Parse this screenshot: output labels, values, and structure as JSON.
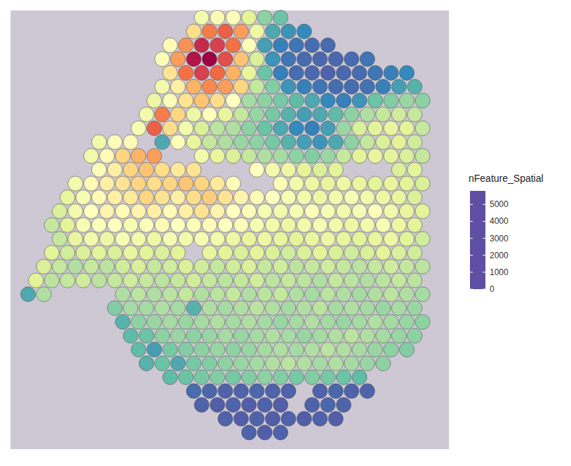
{
  "chart_data": {
    "type": "spatial",
    "tick_labels": false,
    "grid": false,
    "legend_title": "nFeature_Spatial",
    "colorbar": {
      "min": 0,
      "max": 5800,
      "ticks": [
        0,
        1000,
        2000,
        3000,
        4000,
        5000
      ],
      "colors": [
        "#5E4FA2",
        "#3288BD",
        "#66C2A5",
        "#ABDDA4",
        "#E6F598",
        "#FFFFBF",
        "#FEE08B",
        "#FDAE61",
        "#F46D43",
        "#D53E4F",
        "#9E0142"
      ]
    },
    "values": [
      [
        null,
        null,
        null,
        null,
        null,
        null,
        null,
        null,
        null,
        null,
        null,
        2600,
        3000,
        2800,
        2300,
        1500,
        1200,
        null,
        null,
        null,
        null,
        null,
        null,
        null,
        null,
        null
      ],
      [
        null,
        null,
        null,
        null,
        null,
        null,
        null,
        null,
        null,
        null,
        3500,
        4500,
        4800,
        4200,
        2500,
        900,
        700,
        600,
        null,
        null,
        null,
        null,
        null,
        null,
        null,
        null
      ],
      [
        null,
        null,
        null,
        null,
        null,
        null,
        null,
        null,
        null,
        3000,
        4300,
        5400,
        5200,
        4600,
        2800,
        800,
        500,
        400,
        300,
        300,
        null,
        null,
        null,
        null,
        null,
        null
      ],
      [
        null,
        null,
        null,
        null,
        null,
        null,
        null,
        null,
        2800,
        4200,
        5600,
        5800,
        5000,
        3800,
        2200,
        700,
        400,
        300,
        250,
        250,
        300,
        400,
        null,
        null,
        null,
        null
      ],
      [
        null,
        null,
        null,
        null,
        null,
        null,
        null,
        null,
        null,
        3400,
        4600,
        5200,
        4700,
        4000,
        2400,
        1200,
        500,
        300,
        250,
        200,
        250,
        300,
        400,
        500,
        600,
        null
      ],
      [
        null,
        null,
        null,
        null,
        null,
        null,
        null,
        null,
        2600,
        3200,
        4000,
        4400,
        4200,
        3600,
        2000,
        1400,
        700,
        500,
        400,
        300,
        300,
        350,
        500,
        800,
        1000,
        null
      ],
      [
        null,
        null,
        null,
        null,
        null,
        null,
        null,
        null,
        2500,
        2800,
        3400,
        3800,
        3500,
        2900,
        1700,
        1500,
        1300,
        1100,
        900,
        600,
        500,
        700,
        1200,
        1400,
        1600,
        1500
      ],
      [
        null,
        null,
        null,
        null,
        null,
        null,
        null,
        2600,
        4500,
        3600,
        2500,
        2800,
        2400,
        2000,
        1600,
        1300,
        1000,
        800,
        900,
        1100,
        1500,
        1800,
        2000,
        2100,
        2000,
        null
      ],
      [
        null,
        null,
        null,
        null,
        null,
        null,
        null,
        2700,
        4800,
        3500,
        2600,
        2200,
        1900,
        1800,
        1500,
        1200,
        900,
        600,
        500,
        800,
        1600,
        2200,
        2300,
        2400,
        2300,
        2000
      ],
      [
        null,
        null,
        null,
        null,
        2600,
        2800,
        3000,
        null,
        900,
        2800,
        2400,
        2000,
        1800,
        1600,
        1500,
        1300,
        1000,
        800,
        700,
        900,
        1500,
        2000,
        2200,
        2300,
        2100,
        null
      ],
      [
        null,
        null,
        null,
        null,
        2600,
        3000,
        3600,
        4000,
        4200,
        null,
        null,
        2600,
        2400,
        2200,
        2000,
        1800,
        1700,
        1500,
        1400,
        1600,
        2000,
        2300,
        2400,
        2300,
        2200,
        2000
      ],
      [
        null,
        null,
        null,
        null,
        2800,
        3200,
        3600,
        3800,
        3500,
        3300,
        3400,
        null,
        null,
        null,
        2900,
        2600,
        2500,
        2300,
        2200,
        2300,
        null,
        null,
        null,
        2200,
        2300,
        null
      ],
      [
        null,
        null,
        null,
        2600,
        3000,
        3200,
        3400,
        3600,
        3500,
        3600,
        3800,
        3600,
        3300,
        3000,
        null,
        null,
        2800,
        2600,
        2500,
        2400,
        2500,
        2400,
        2300,
        2400,
        2300,
        2200
      ],
      [
        null,
        null,
        2400,
        2700,
        3000,
        3200,
        3300,
        3600,
        3400,
        3200,
        3500,
        3700,
        3400,
        3100,
        3000,
        2900,
        2700,
        2600,
        2500,
        2600,
        2700,
        2600,
        2500,
        2400,
        2200,
        null
      ],
      [
        null,
        null,
        2200,
        2600,
        2900,
        3100,
        3000,
        3100,
        3200,
        3000,
        3200,
        3400,
        3100,
        2900,
        2800,
        2700,
        2600,
        2700,
        2800,
        2700,
        2600,
        2700,
        2800,
        2600,
        2400,
        2300
      ],
      [
        null,
        2000,
        2300,
        2700,
        2800,
        2900,
        2700,
        2800,
        3000,
        2900,
        2800,
        3000,
        2900,
        2800,
        2700,
        2600,
        2500,
        2600,
        2700,
        2600,
        2500,
        2600,
        2700,
        2500,
        2300,
        null
      ],
      [
        null,
        null,
        2000,
        2400,
        2600,
        2500,
        2700,
        2600,
        2500,
        2700,
        2600,
        2700,
        2600,
        2500,
        2400,
        2500,
        2400,
        2300,
        2400,
        2500,
        2400,
        2300,
        2400,
        2500,
        2300,
        2100
      ],
      [
        null,
        2300,
        2100,
        2200,
        2300,
        2200,
        2400,
        2300,
        2200,
        2300,
        null,
        2400,
        2300,
        2200,
        2300,
        2200,
        2100,
        2200,
        2300,
        2200,
        2100,
        2200,
        2300,
        2200,
        2100,
        null
      ],
      [
        null,
        2200,
        2000,
        1800,
        2000,
        1900,
        2100,
        2200,
        2000,
        2100,
        2200,
        2100,
        2000,
        2100,
        2200,
        2000,
        2100,
        1900,
        2000,
        2100,
        2000,
        1900,
        2000,
        2100,
        2000,
        1900
      ],
      [
        2300,
        1900,
        2000,
        2100,
        1900,
        2000,
        2100,
        2000,
        1900,
        2000,
        2100,
        2000,
        1900,
        2000,
        2100,
        1900,
        2000,
        1900,
        1800,
        2000,
        1900,
        1800,
        1900,
        2000,
        1900,
        null
      ],
      [
        900,
        1800,
        null,
        null,
        null,
        null,
        1800,
        1900,
        1800,
        1900,
        2000,
        1800,
        1900,
        2000,
        1800,
        1900,
        2000,
        1800,
        1700,
        1900,
        1800,
        1700,
        1800,
        1900,
        1800,
        1700
      ],
      [
        null,
        null,
        null,
        null,
        null,
        1400,
        1700,
        1700,
        1800,
        1700,
        1000,
        1800,
        1700,
        1800,
        1900,
        1800,
        1700,
        1800,
        1900,
        1700,
        1800,
        1700,
        1600,
        1700,
        1600,
        null
      ],
      [
        null,
        null,
        null,
        null,
        null,
        null,
        1000,
        1500,
        1600,
        1700,
        1600,
        1700,
        1800,
        1700,
        1800,
        1700,
        1600,
        1700,
        1800,
        1700,
        1600,
        1700,
        1800,
        1700,
        1600,
        1500
      ],
      [
        null,
        null,
        null,
        null,
        null,
        null,
        1100,
        1200,
        1500,
        1600,
        1500,
        1600,
        1700,
        1600,
        1700,
        1800,
        1700,
        1600,
        1700,
        1800,
        1900,
        1800,
        1700,
        1600,
        1500,
        null
      ],
      [
        null,
        null,
        null,
        null,
        null,
        null,
        null,
        1100,
        800,
        1300,
        1400,
        1500,
        1600,
        1500,
        1600,
        1700,
        1800,
        1700,
        1800,
        1900,
        1800,
        1700,
        1600,
        1500,
        1400,
        null
      ],
      [
        null,
        null,
        null,
        null,
        null,
        null,
        null,
        1000,
        1200,
        900,
        1300,
        1400,
        1500,
        1600,
        1700,
        1800,
        1900,
        1800,
        1700,
        1800,
        1700,
        1600,
        1500,
        null,
        null,
        null
      ],
      [
        null,
        null,
        null,
        null,
        null,
        null,
        null,
        null,
        null,
        1100,
        1200,
        1300,
        1400,
        1300,
        1400,
        1500,
        1400,
        1300,
        1400,
        1300,
        1200,
        1100,
        null,
        null,
        null,
        null
      ],
      [
        null,
        null,
        null,
        null,
        null,
        null,
        null,
        null,
        null,
        null,
        300,
        250,
        200,
        200,
        250,
        200,
        200,
        null,
        200,
        250,
        200,
        200,
        null,
        null,
        null,
        null
      ],
      [
        null,
        null,
        null,
        null,
        null,
        null,
        null,
        null,
        null,
        null,
        null,
        200,
        150,
        200,
        150,
        200,
        150,
        null,
        200,
        250,
        200,
        null,
        null,
        null,
        null,
        null
      ],
      [
        null,
        null,
        null,
        null,
        null,
        null,
        null,
        null,
        null,
        null,
        null,
        null,
        200,
        150,
        200,
        150,
        200,
        150,
        200,
        150,
        null,
        null,
        null,
        null,
        null,
        null
      ],
      [
        null,
        null,
        null,
        null,
        null,
        null,
        null,
        null,
        null,
        null,
        null,
        null,
        null,
        null,
        200,
        150,
        200,
        null,
        null,
        null,
        null,
        null,
        null,
        null,
        null,
        null
      ]
    ]
  }
}
